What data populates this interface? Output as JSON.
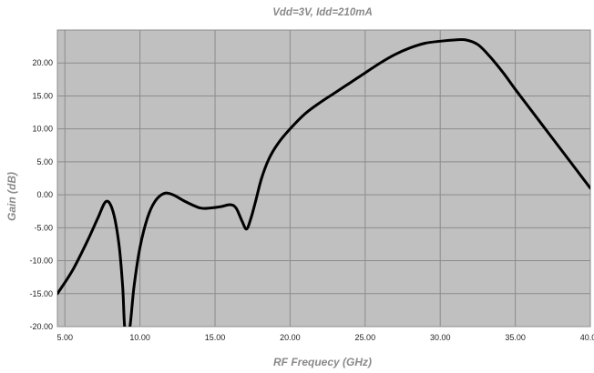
{
  "chart_data": {
    "type": "line",
    "title": "Vdd=3V, Idd=210mA",
    "xlabel": "RF Frequecy (GHz)",
    "ylabel": "Gain (dB)",
    "xlim": [
      4.5,
      40.0
    ],
    "ylim": [
      -20.0,
      25.0
    ],
    "x_ticks": [
      5.0,
      10.0,
      15.0,
      20.0,
      25.0,
      30.0,
      35.0,
      40.0
    ],
    "x_tick_labels": [
      "5.00",
      "10.00",
      "15.00",
      "20.00",
      "25.00",
      "30.00",
      "35.00",
      "40.00"
    ],
    "y_ticks": [
      -20.0,
      -15.0,
      -10.0,
      -5.0,
      0.0,
      5.0,
      10.0,
      15.0,
      20.0
    ],
    "y_tick_labels": [
      "-20.00",
      "-15.00",
      "-10.00",
      "-5.00",
      "0.00",
      "5.00",
      "10.00",
      "15.00",
      "20.00"
    ],
    "grid": true,
    "plot_background": "#c0c0c0",
    "series": [
      {
        "color": "#000000",
        "x": [
          4.5,
          5.5,
          6.5,
          7.2,
          7.75,
          8.2,
          8.6,
          8.85,
          9.0,
          9.3,
          9.6,
          10.0,
          10.5,
          11.0,
          11.6,
          12.2,
          13.0,
          14.0,
          14.7,
          15.4,
          16.0,
          16.4,
          16.8,
          17.1,
          17.4,
          17.7,
          18.1,
          18.6,
          19.2,
          20.0,
          21.0,
          22.0,
          23.0,
          24.0,
          25.0,
          26.0,
          27.0,
          28.0,
          29.0,
          30.0,
          31.0,
          31.7,
          32.5,
          33.3,
          34.2,
          35.0,
          36.0,
          37.0,
          38.0,
          39.0,
          40.0
        ],
        "y": [
          -15.0,
          -11.5,
          -7.0,
          -3.5,
          -1.0,
          -2.5,
          -7.5,
          -14.0,
          -20.5,
          -20.5,
          -14.0,
          -8.0,
          -3.5,
          -1.0,
          0.2,
          0.0,
          -1.0,
          -2.0,
          -2.0,
          -1.8,
          -1.5,
          -2.0,
          -4.0,
          -5.2,
          -3.5,
          -1.0,
          2.5,
          5.5,
          7.8,
          10.0,
          12.3,
          14.0,
          15.5,
          17.0,
          18.5,
          20.0,
          21.3,
          22.3,
          23.0,
          23.3,
          23.5,
          23.5,
          22.8,
          21.0,
          18.5,
          16.0,
          13.0,
          10.0,
          7.0,
          4.0,
          1.0
        ]
      }
    ]
  }
}
